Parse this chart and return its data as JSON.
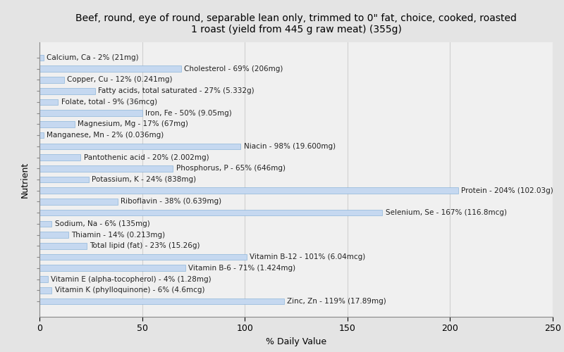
{
  "title": "Beef, round, eye of round, separable lean only, trimmed to 0\" fat, choice, cooked, roasted\n1 roast (yield from 445 g raw meat) (355g)",
  "xlabel": "% Daily Value",
  "ylabel": "Nutrient",
  "nutrients": [
    "Calcium, Ca - 2% (21mg)",
    "Cholesterol - 69% (206mg)",
    "Copper, Cu - 12% (0.241mg)",
    "Fatty acids, total saturated - 27% (5.332g)",
    "Folate, total - 9% (36mcg)",
    "Iron, Fe - 50% (9.05mg)",
    "Magnesium, Mg - 17% (67mg)",
    "Manganese, Mn - 2% (0.036mg)",
    "Niacin - 98% (19.600mg)",
    "Pantothenic acid - 20% (2.002mg)",
    "Phosphorus, P - 65% (646mg)",
    "Potassium, K - 24% (838mg)",
    "Protein - 204% (102.03g)",
    "Riboflavin - 38% (0.639mg)",
    "Selenium, Se - 167% (116.8mcg)",
    "Sodium, Na - 6% (135mg)",
    "Thiamin - 14% (0.213mg)",
    "Total lipid (fat) - 23% (15.26g)",
    "Vitamin B-12 - 101% (6.04mcg)",
    "Vitamin B-6 - 71% (1.424mg)",
    "Vitamin E (alpha-tocopherol) - 4% (1.28mg)",
    "Vitamin K (phylloquinone) - 6% (4.6mcg)",
    "Zinc, Zn - 119% (17.89mg)"
  ],
  "values": [
    2,
    69,
    12,
    27,
    9,
    50,
    17,
    2,
    98,
    20,
    65,
    24,
    204,
    38,
    167,
    6,
    14,
    23,
    101,
    71,
    4,
    6,
    119
  ],
  "bar_color": "#c5d8f0",
  "bar_edgecolor": "#7aaad4",
  "background_color": "#e4e4e4",
  "plot_background": "#f0f0f0",
  "text_color": "#222222",
  "xlim": [
    0,
    250
  ],
  "xticks": [
    0,
    50,
    100,
    150,
    200,
    250
  ],
  "grid_color": "#d0d0d0",
  "title_fontsize": 10,
  "label_fontsize": 7.5,
  "tick_fontsize": 9
}
